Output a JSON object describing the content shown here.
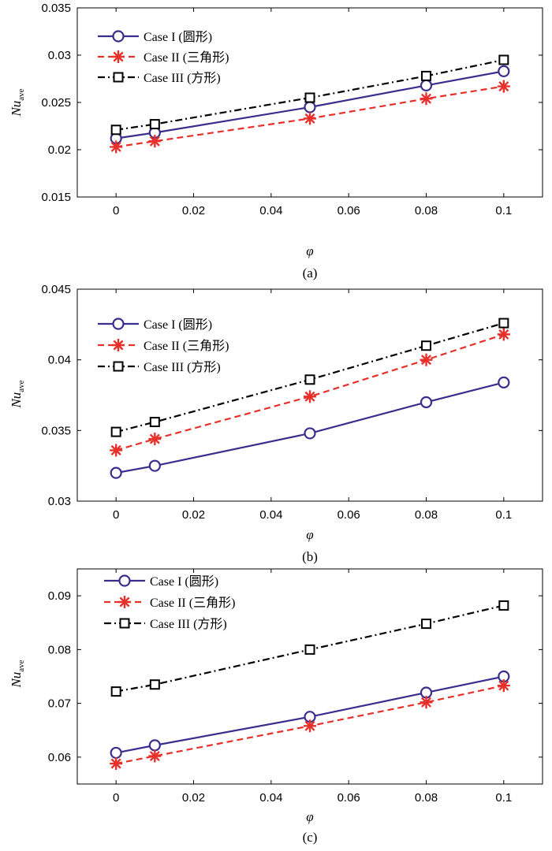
{
  "chart_data": [
    {
      "type": "line",
      "panel_label": "(a)",
      "xlabel": "φ",
      "ylabel": "Nu",
      "ylabel_sub": "ave",
      "xlim": [
        -0.01,
        0.11
      ],
      "ylim": [
        0.015,
        0.035
      ],
      "xticks": [
        0,
        0.02,
        0.04,
        0.06,
        0.08,
        0.1
      ],
      "xtick_labels": [
        "0",
        "0.02",
        "0.04",
        "0.06",
        "0.08",
        "0.1"
      ],
      "yticks": [
        0.015,
        0.02,
        0.025,
        0.03,
        0.035
      ],
      "ytick_labels": [
        "0.015",
        "0.02",
        "0.025",
        "0.03",
        "0.035"
      ],
      "legend_position": "top-left",
      "x": [
        0,
        0.01,
        0.05,
        0.08,
        0.1
      ],
      "series": [
        {
          "name": "Case I (圆形)",
          "values": [
            0.0212,
            0.0218,
            0.0245,
            0.0268,
            0.0283
          ],
          "color": "#3a2e8c",
          "marker": "circle",
          "dash": "solid"
        },
        {
          "name": "Case II (三角形)",
          "values": [
            0.0203,
            0.0209,
            0.0233,
            0.0254,
            0.0267
          ],
          "color": "#e8302a",
          "marker": "asterisk",
          "dash": "dashed"
        },
        {
          "name": "Case III (方形)",
          "values": [
            0.0221,
            0.0227,
            0.0255,
            0.0278,
            0.0295
          ],
          "color": "#000000",
          "marker": "square",
          "dash": "dashdot"
        }
      ]
    },
    {
      "type": "line",
      "panel_label": "(b)",
      "xlabel": "φ",
      "ylabel": "Nu",
      "ylabel_sub": "ave",
      "xlim": [
        -0.01,
        0.11
      ],
      "ylim": [
        0.03,
        0.045
      ],
      "xticks": [
        0,
        0.02,
        0.04,
        0.06,
        0.08,
        0.1
      ],
      "xtick_labels": [
        "0",
        "0.02",
        "0.04",
        "0.06",
        "0.08",
        "0.1"
      ],
      "yticks": [
        0.03,
        0.035,
        0.04,
        0.045
      ],
      "ytick_labels": [
        "0.03",
        "0.035",
        "0.04",
        "0.045"
      ],
      "legend_position": "top-left",
      "x": [
        0,
        0.01,
        0.05,
        0.08,
        0.1
      ],
      "series": [
        {
          "name": "Case I (圆形)",
          "values": [
            0.032,
            0.0325,
            0.0348,
            0.037,
            0.0384
          ],
          "color": "#3a2e8c",
          "marker": "circle",
          "dash": "solid"
        },
        {
          "name": "Case II (三角形)",
          "values": [
            0.0336,
            0.0344,
            0.0374,
            0.04,
            0.0418
          ],
          "color": "#e8302a",
          "marker": "asterisk",
          "dash": "dashed"
        },
        {
          "name": "Case III (方形)",
          "values": [
            0.0349,
            0.0356,
            0.0386,
            0.041,
            0.0426
          ],
          "color": "#000000",
          "marker": "square",
          "dash": "dashdot"
        }
      ]
    },
    {
      "type": "line",
      "panel_label": "(c)",
      "xlabel": "φ",
      "ylabel": "Nu",
      "ylabel_sub": "ave",
      "xlim": [
        -0.01,
        0.11
      ],
      "ylim": [
        0.055,
        0.095
      ],
      "xticks": [
        0,
        0.02,
        0.04,
        0.06,
        0.08,
        0.1
      ],
      "xtick_labels": [
        "0",
        "0.02",
        "0.04",
        "0.06",
        "0.08",
        "0.1"
      ],
      "yticks": [
        0.06,
        0.07,
        0.08,
        0.09
      ],
      "ytick_labels": [
        "0.06",
        "0.07",
        "0.08",
        "0.09"
      ],
      "legend_position": "top-left",
      "x": [
        0,
        0.01,
        0.05,
        0.08,
        0.1
      ],
      "series": [
        {
          "name": "Case I (圆形)",
          "values": [
            0.0608,
            0.0622,
            0.0675,
            0.072,
            0.075
          ],
          "color": "#3a2e8c",
          "marker": "circle",
          "dash": "solid"
        },
        {
          "name": "Case II (三角形)",
          "values": [
            0.0588,
            0.0602,
            0.0658,
            0.0702,
            0.0733
          ],
          "color": "#e8302a",
          "marker": "asterisk",
          "dash": "dashed"
        },
        {
          "name": "Case III (方形)",
          "values": [
            0.0722,
            0.0735,
            0.08,
            0.0848,
            0.0882
          ],
          "color": "#000000",
          "marker": "square",
          "dash": "dashdot"
        }
      ]
    }
  ]
}
